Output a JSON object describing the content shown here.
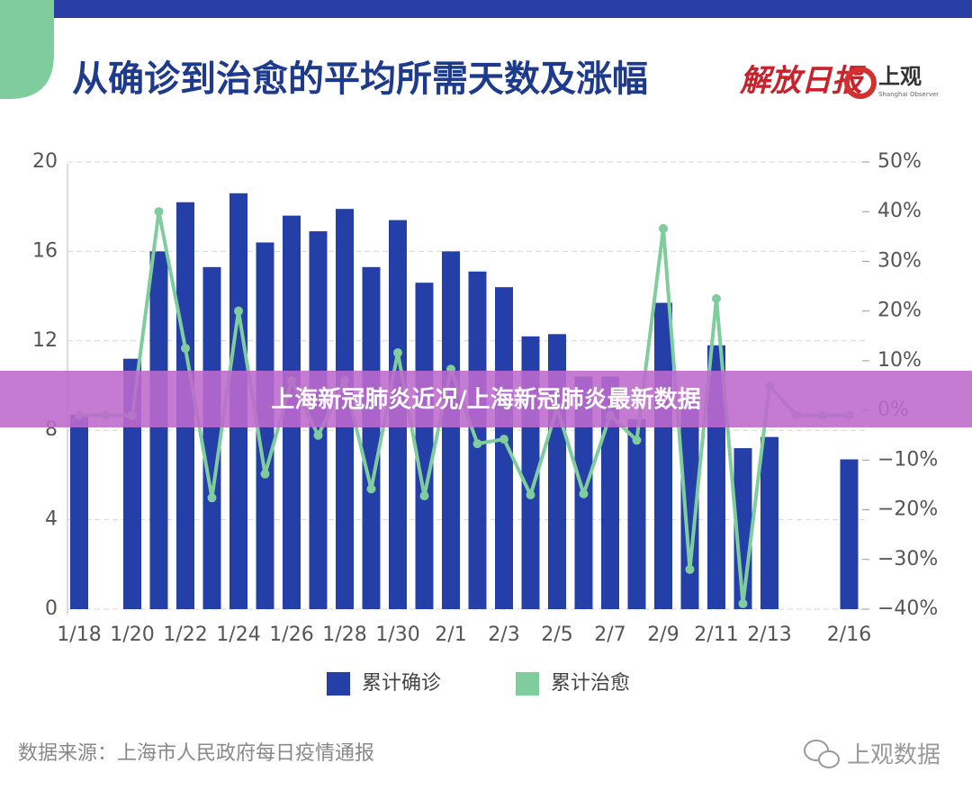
{
  "chart_data": {
    "type": "bar",
    "title": "从确诊到治愈的平均所需天数及涨幅",
    "categories": [
      "1/18",
      null,
      "1/20",
      null,
      "1/22",
      null,
      "1/24",
      null,
      "1/26",
      null,
      "1/28",
      null,
      "1/30",
      null,
      "2/1",
      null,
      "2/3",
      null,
      "2/5",
      null,
      "2/7",
      null,
      "2/9",
      null,
      "2/11",
      null,
      "2/13",
      null,
      null,
      "2/16"
    ],
    "series": [
      {
        "name": "累计确诊",
        "color": "#2440a8",
        "type": "bar",
        "values": [
          8.7,
          null,
          11.2,
          16.0,
          18.2,
          15.3,
          18.6,
          16.4,
          17.6,
          16.9,
          17.9,
          15.3,
          17.4,
          14.6,
          16.0,
          15.1,
          14.4,
          12.2,
          12.3,
          10.4,
          10.4,
          8.5,
          13.7,
          9.5,
          11.8,
          7.2,
          7.7,
          null,
          null,
          6.7
        ]
      },
      {
        "name": "累计治愈",
        "color": "#7fcc9d",
        "type": "line",
        "axis": "y2",
        "values": [
          -1,
          -1,
          -1,
          40,
          12.5,
          -17.6,
          20,
          -12.8,
          6,
          -5,
          6,
          -15.8,
          11.6,
          -17.2,
          8.3,
          -6.7,
          -5.8,
          -17,
          0.5,
          -16.8,
          -1,
          -6,
          36.6,
          -32,
          22.5,
          -38.9,
          5,
          -1,
          -1,
          -1
        ]
      }
    ],
    "ylim": [
      0,
      20
    ],
    "yticks": [
      0,
      4,
      8,
      12,
      16,
      20
    ],
    "y2lim": [
      -40,
      50
    ],
    "y2ticks": [
      {
        "value": -40,
        "label": "−40%"
      },
      {
        "value": -30,
        "label": "−30%"
      },
      {
        "value": -20,
        "label": "−20%"
      },
      {
        "value": -10,
        "label": "−10%"
      },
      {
        "value": 0,
        "label": "0%"
      },
      {
        "value": 10,
        "label": "10%"
      },
      {
        "value": 20,
        "label": "20%"
      },
      {
        "value": 30,
        "label": "30%"
      },
      {
        "value": 40,
        "label": "40%"
      },
      {
        "value": 50,
        "label": "50%"
      }
    ],
    "grid": true,
    "source": "数据来源：上海市人民政府每日疫情通报"
  },
  "logos": {
    "paper": "解放日报",
    "brand": "上观",
    "brand_sub": "Shanghai Observer"
  },
  "watermark": "上观数据",
  "banner": "上海新冠肺炎近况/上海新冠肺炎最新数据"
}
